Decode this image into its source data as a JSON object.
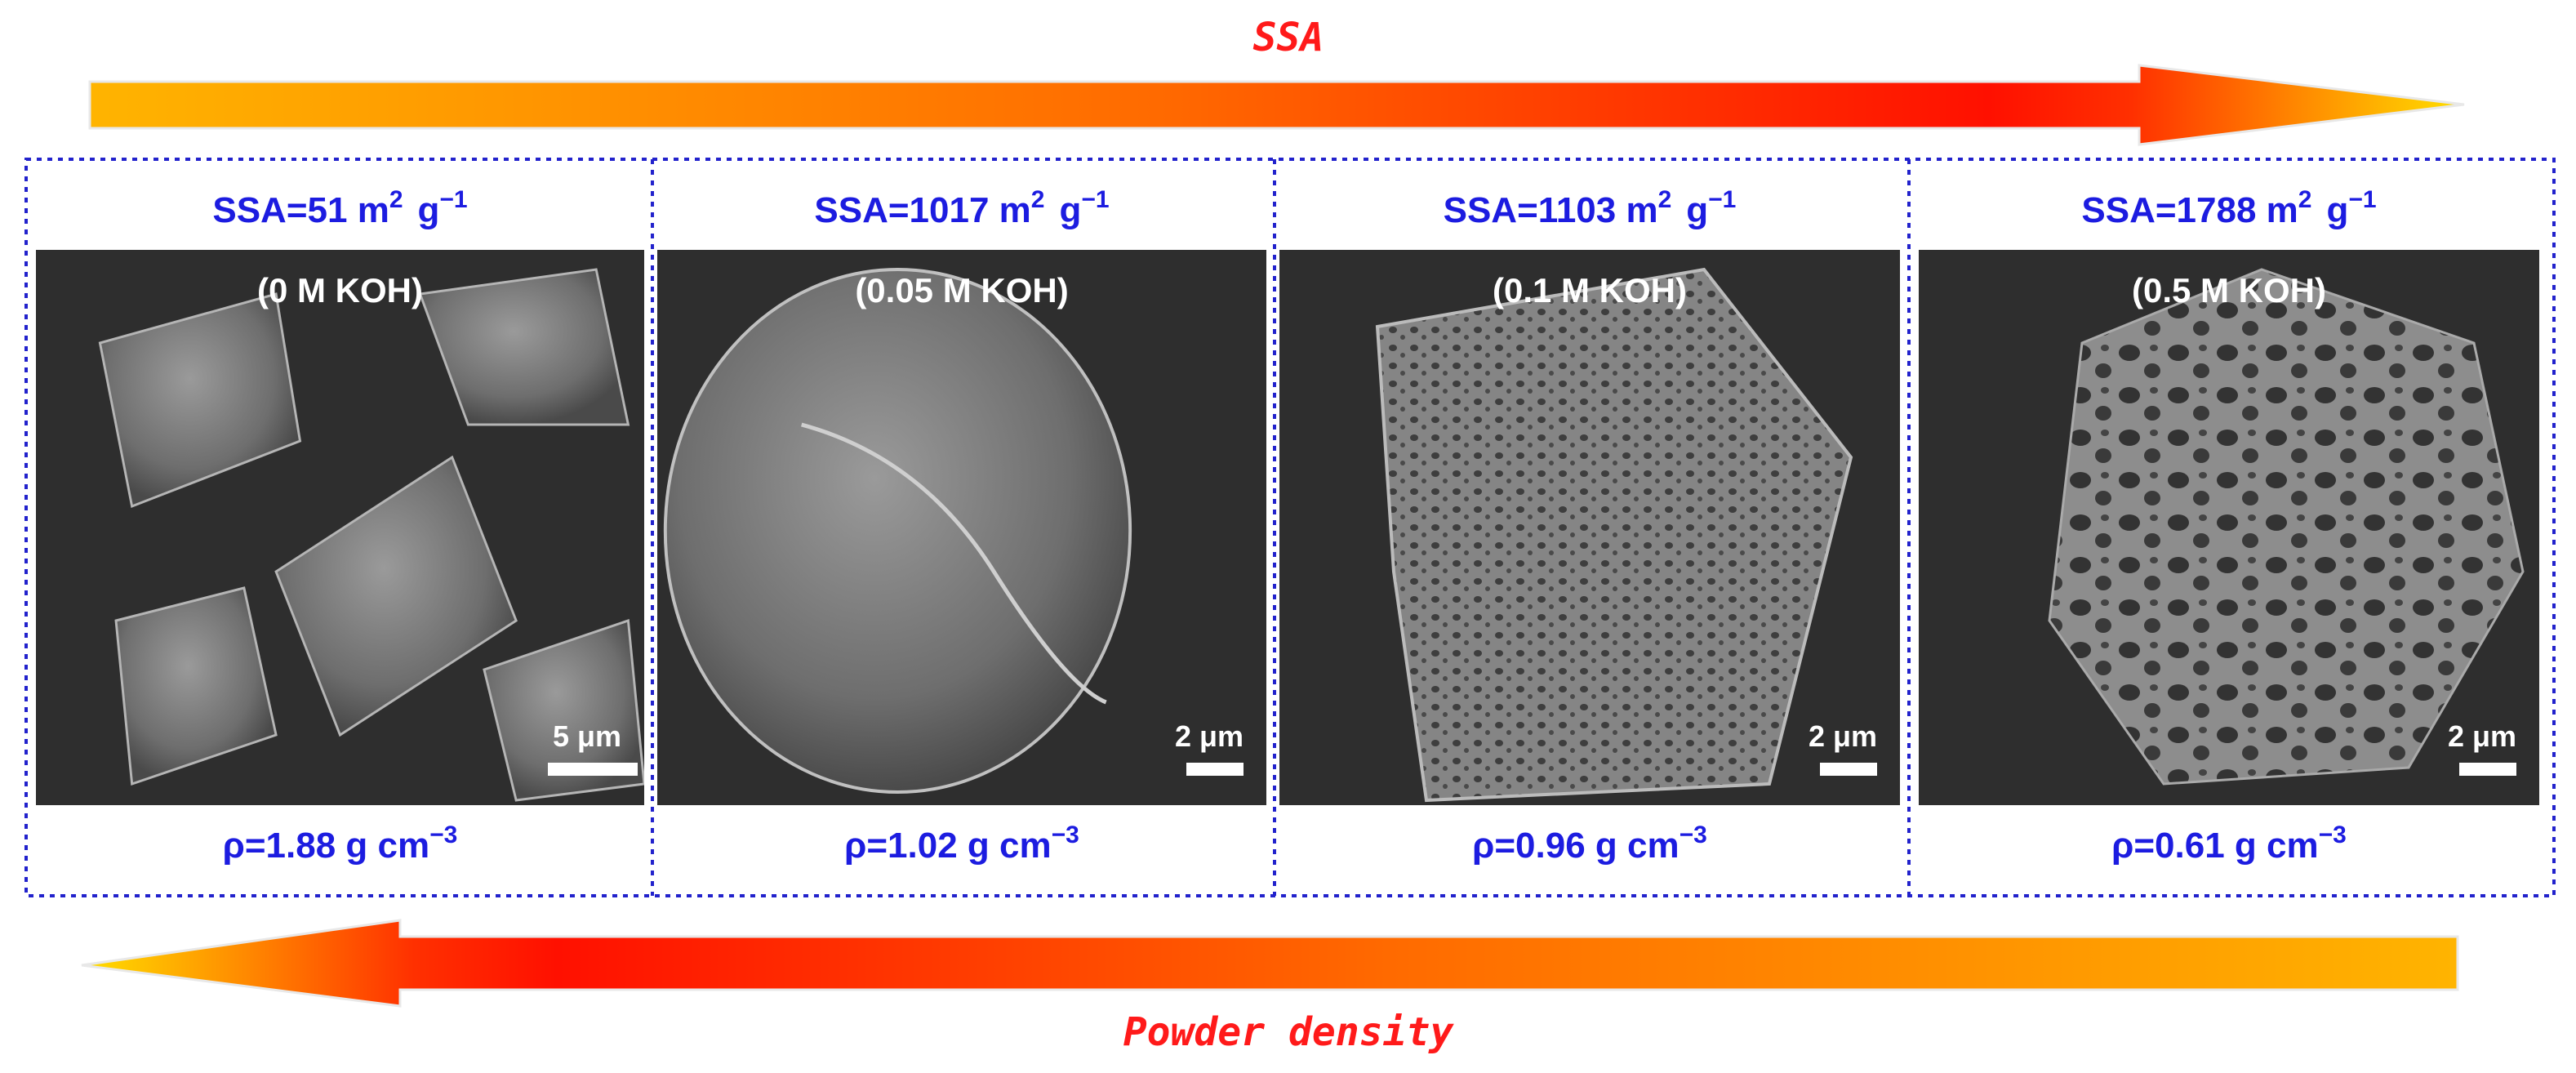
{
  "title_top": "SSA",
  "title_bottom": "Powder density",
  "panels": [
    {
      "ssa": "SSA=51 m",
      "ssa_sup": "2",
      "ssa_unit": "g",
      "ssa_unit_sup": "−1",
      "condition": "(0 M KOH)",
      "scale_bar": "5 μm",
      "density": "ρ=1.88 g cm",
      "density_sup": "−3"
    },
    {
      "ssa": "SSA=1017 m",
      "ssa_sup": "2",
      "ssa_unit": "g",
      "ssa_unit_sup": "−1",
      "condition": "(0.05 M KOH)",
      "scale_bar": "2 μm",
      "density": "ρ=1.02 g cm",
      "density_sup": "−3"
    },
    {
      "ssa": "SSA=1103 m",
      "ssa_sup": "2",
      "ssa_unit": "g",
      "ssa_unit_sup": "−1",
      "condition": "(0.1 M KOH)",
      "scale_bar": "2 μm",
      "density": "ρ=0.96 g cm",
      "density_sup": "−3"
    },
    {
      "ssa": "SSA=1788 m",
      "ssa_sup": "2",
      "ssa_unit": "g",
      "ssa_unit_sup": "−1",
      "condition": "(0.5 M KOH)",
      "scale_bar": "2 μm",
      "density": "ρ=0.61 g cm",
      "density_sup": "−3"
    }
  ]
}
